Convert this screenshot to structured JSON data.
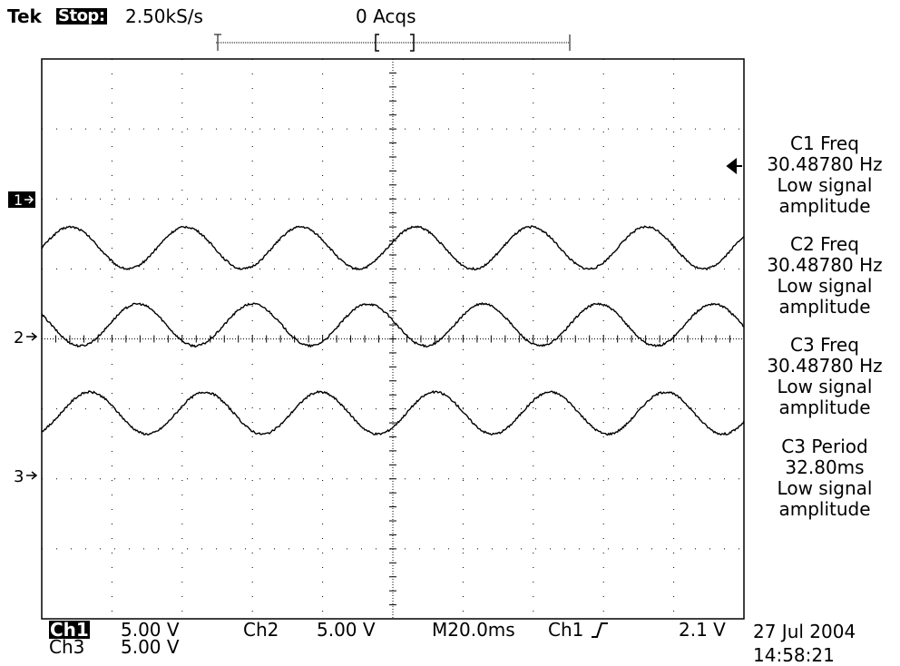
{
  "header": {
    "brand": "Tek",
    "run_state": "Stop:",
    "sample_rate": "2.50kS/s",
    "acquisitions": "0 Acqs"
  },
  "trigger_marker_label": "T",
  "channel_markers": [
    "1",
    "2",
    "3"
  ],
  "measurements": [
    {
      "title": "C1 Freq",
      "value": "30.48780 Hz",
      "status1": "Low signal",
      "status2": "amplitude"
    },
    {
      "title": "C2 Freq",
      "value": "30.48780 Hz",
      "status1": "Low signal",
      "status2": "amplitude"
    },
    {
      "title": "C3 Freq",
      "value": "30.48780 Hz",
      "status1": "Low signal",
      "status2": "amplitude"
    },
    {
      "title": "C3 Period",
      "value": "32.80ms",
      "status1": "Low signal",
      "status2": "amplitude"
    }
  ],
  "footer": {
    "ch1_label": "Ch1",
    "ch1_scale": "5.00 V",
    "ch2_label": "Ch2",
    "ch2_scale": "5.00 V",
    "timebase": "M20.0ms",
    "trigger_source": "Ch1",
    "trigger_level": "2.1 V",
    "ch3_label": "Ch3",
    "ch3_scale": "5.00 V",
    "date": "27 Jul 2004",
    "time": "14:58:21"
  },
  "colors": {
    "background": "#ffffff",
    "trace": "#000000",
    "grid": "#000000"
  },
  "waveforms": {
    "frequency_hz": 30.4878,
    "period_ms": 32.8,
    "time_per_division_ms": 20.0,
    "volts_per_division": 5.0,
    "amplitude_divisions": 0.3,
    "traces": [
      {
        "channel": 1,
        "center_div": 1.3,
        "phase_deg": 0
      },
      {
        "channel": 2,
        "center_div": 0.2,
        "phase_deg": 150
      },
      {
        "channel": 3,
        "center_div": -1.06,
        "phase_deg": 300
      }
    ]
  }
}
